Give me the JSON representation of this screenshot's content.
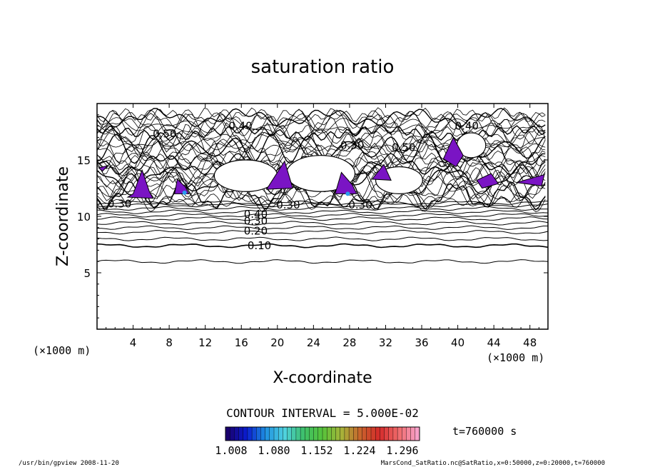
{
  "chart_data": {
    "type": "contour",
    "title": "saturation ratio",
    "xlabel": "X-coordinate",
    "ylabel": "Z-coordinate",
    "x_unit": "(×1000 m)",
    "z_unit": "(×1000 m)",
    "xlim": [
      0,
      50
    ],
    "ylim": [
      0,
      20
    ],
    "x_ticks": [
      4,
      8,
      12,
      16,
      20,
      24,
      28,
      32,
      36,
      40,
      44,
      48
    ],
    "y_ticks": [
      5,
      10,
      15
    ],
    "contour_interval_text": "CONTOUR INTERVAL = 5.000E-02",
    "time_text": "t=760000 s",
    "contour_labels": [
      {
        "text": "0.10",
        "x": 18.0,
        "z": 7.4
      },
      {
        "text": "0.20",
        "x": 17.6,
        "z": 8.7
      },
      {
        "text": "0.30",
        "x": 17.6,
        "z": 9.6
      },
      {
        "text": "0.40",
        "x": 17.6,
        "z": 10.2
      },
      {
        "text": "0.40",
        "x": 15.9,
        "z": 18.0
      },
      {
        "text": "0.50",
        "x": 7.5,
        "z": 17.3
      },
      {
        "text": "0.30",
        "x": 28.3,
        "z": 16.3
      },
      {
        "text": "0.50",
        "x": 34.0,
        "z": 16.1
      },
      {
        "text": "0.40",
        "x": 41.0,
        "z": 18.0
      },
      {
        "text": "0.30",
        "x": 2.5,
        "z": 11.1
      },
      {
        "text": "0.30",
        "x": 21.2,
        "z": 11.0
      },
      {
        "text": "0.30",
        "x": 29.2,
        "z": 11.0
      }
    ],
    "supersaturated_regions_min_ratio": 1.0,
    "colorbar": {
      "ticks": [
        "1.008",
        "1.080",
        "1.152",
        "1.224",
        "1.296"
      ],
      "colors": [
        "#1a006e",
        "#0a1ccf",
        "#1e90e0",
        "#4fd2e0",
        "#3dbf6a",
        "#56c33a",
        "#a6b43a",
        "#c8642c",
        "#d42a2a",
        "#f06a6a",
        "#f7a0c8"
      ]
    },
    "fill_color": "#7a14c4",
    "accent_color": "#2a9cf0"
  },
  "footer": {
    "left": "/usr/bin/gpview  2008-11-20",
    "right": "MarsCond_SatRatio.nc@SatRatio,x=0:50000,z=0:20000,t=760000"
  }
}
